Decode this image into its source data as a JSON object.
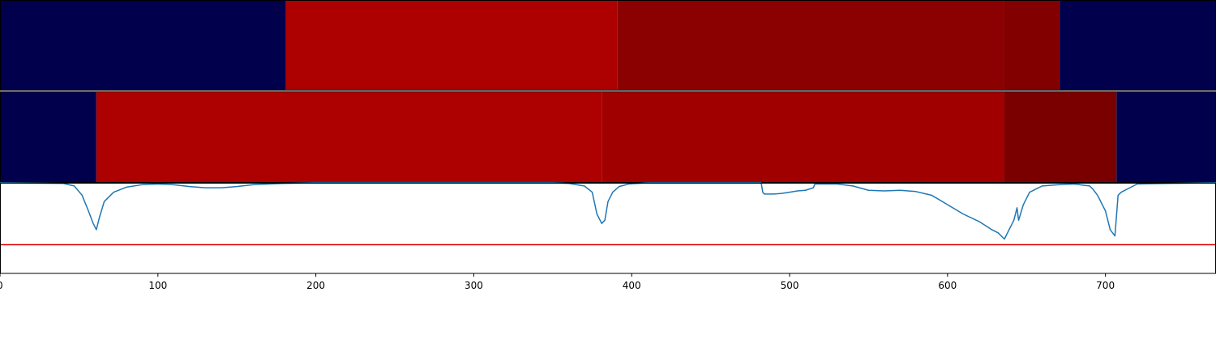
{
  "chart_data": [
    {
      "type": "heatmap",
      "x_range": [
        0,
        770
      ],
      "segments": [
        {
          "x0": 0,
          "x1": 181,
          "color": "#00004c"
        },
        {
          "x0": 181,
          "x1": 391,
          "color": "#ad0000"
        },
        {
          "x0": 391,
          "x1": 636,
          "color": "#8b0000"
        },
        {
          "x0": 636,
          "x1": 671,
          "color": "#820000"
        },
        {
          "x0": 671,
          "x1": 770,
          "color": "#00004c"
        }
      ]
    },
    {
      "type": "heatmap",
      "x_range": [
        0,
        770
      ],
      "segments": [
        {
          "x0": 0,
          "x1": 61,
          "color": "#00004c"
        },
        {
          "x0": 61,
          "x1": 381,
          "color": "#ad0000"
        },
        {
          "x0": 381,
          "x1": 636,
          "color": "#a10000"
        },
        {
          "x0": 636,
          "x1": 707,
          "color": "#7a0000"
        },
        {
          "x0": 707,
          "x1": 770,
          "color": "#00004c"
        }
      ]
    },
    {
      "type": "line",
      "xlim": [
        0,
        770
      ],
      "ylim": [
        -1.45,
        0
      ],
      "xticks": [
        0,
        100,
        200,
        300,
        400,
        500,
        600,
        700
      ],
      "line_color": "#1f77b4",
      "threshold": {
        "y": -0.99,
        "color": "#e00000"
      },
      "x": [
        0,
        40,
        47,
        52,
        56,
        59,
        61,
        63,
        66,
        72,
        80,
        90,
        100,
        110,
        120,
        130,
        140,
        150,
        160,
        170,
        180,
        200,
        250,
        300,
        350,
        360,
        370,
        375,
        378,
        381,
        383,
        385,
        388,
        392,
        398,
        410,
        430,
        460,
        482,
        483,
        484,
        490,
        495,
        500,
        505,
        510,
        515,
        516,
        520,
        530,
        540,
        550,
        560,
        570,
        580,
        590,
        600,
        610,
        620,
        628,
        632,
        636,
        640,
        642,
        644,
        645,
        648,
        652,
        656,
        660,
        670,
        680,
        690,
        692,
        695,
        700,
        703,
        706,
        708,
        710,
        720,
        740,
        770
      ],
      "y": [
        0,
        -0.01,
        -0.05,
        -0.2,
        -0.45,
        -0.65,
        -0.75,
        -0.55,
        -0.3,
        -0.15,
        -0.07,
        -0.03,
        -0.02,
        -0.03,
        -0.06,
        -0.08,
        -0.08,
        -0.06,
        -0.03,
        -0.02,
        -0.01,
        0,
        0,
        0,
        0,
        -0.01,
        -0.05,
        -0.15,
        -0.5,
        -0.65,
        -0.6,
        -0.3,
        -0.15,
        -0.06,
        -0.02,
        0,
        0,
        0,
        0,
        -0.15,
        -0.18,
        -0.18,
        -0.17,
        -0.15,
        -0.13,
        -0.12,
        -0.08,
        -0.02,
        -0.02,
        -0.02,
        -0.05,
        -0.12,
        -0.13,
        -0.12,
        -0.14,
        -0.2,
        -0.35,
        -0.5,
        -0.62,
        -0.75,
        -0.8,
        -0.9,
        -0.7,
        -0.6,
        -0.4,
        -0.6,
        -0.35,
        -0.15,
        -0.1,
        -0.05,
        -0.03,
        -0.02,
        -0.05,
        -0.1,
        -0.2,
        -0.45,
        -0.75,
        -0.85,
        -0.2,
        -0.15,
        -0.02,
        -0.01,
        0
      ]
    }
  ]
}
